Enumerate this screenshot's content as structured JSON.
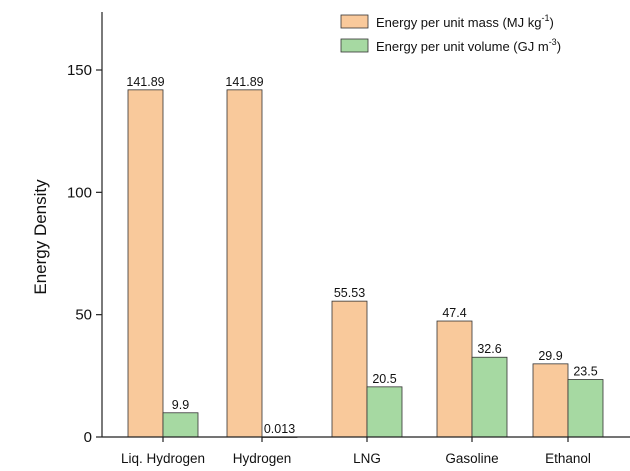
{
  "chart_data": {
    "type": "bar",
    "categories": [
      "Liq. Hydrogen",
      "Hydrogen",
      "LNG",
      "Gasoline",
      "Ethanol"
    ],
    "series": [
      {
        "name": "Energy per unit mass (MJ kg-1)",
        "legend_text": "Energy per unit mass (MJ kg",
        "legend_sup": "-1",
        "legend_tail": ")",
        "color": "#F9C99B",
        "values": [
          141.89,
          141.89,
          55.53,
          47.4,
          29.9
        ],
        "labels": [
          "141.89",
          "141.89",
          "55.53",
          "47.4",
          "29.9"
        ]
      },
      {
        "name": "Energy per unit volume (GJ m-3)",
        "legend_text": "Energy per unit volume (GJ m",
        "legend_sup": "-3",
        "legend_tail": ")",
        "color": "#A6D9A2",
        "values": [
          9.9,
          0.013,
          20.5,
          32.6,
          23.5
        ],
        "labels": [
          "9.9",
          "0.013",
          "20.5",
          "32.6",
          "23.5"
        ]
      }
    ],
    "title": "",
    "xlabel": "",
    "ylabel": "Energy Density",
    "ylim": [
      0,
      150
    ],
    "yticks": [
      0,
      50,
      100,
      150
    ],
    "legend": "top-right",
    "grid": false
  }
}
